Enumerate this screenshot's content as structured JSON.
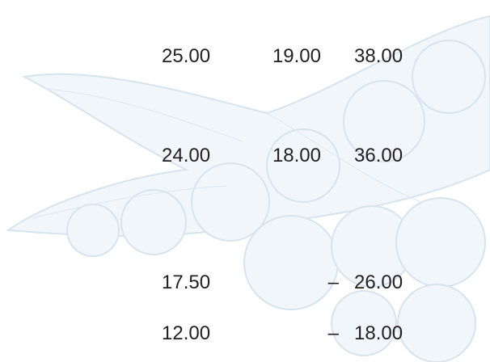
{
  "table": {
    "rows": [
      [
        "25.00",
        "19.00",
        "38.00"
      ],
      [
        "24.00",
        "18.00",
        "36.00"
      ],
      [
        "17.50",
        "–",
        "26.00"
      ],
      [
        "12.00",
        "–",
        "18.00"
      ]
    ]
  }
}
